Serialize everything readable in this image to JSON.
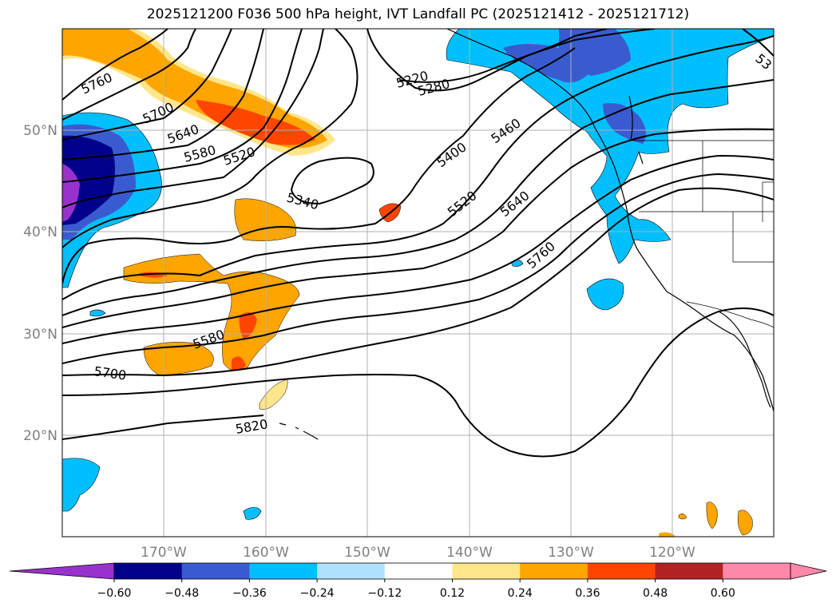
{
  "title": "2025121200 F036 500 hPa height, IVT Landfall PC (2025121412 - 2025121712)",
  "lat_labels": [
    "50°N",
    "40°N",
    "30°N",
    "20°N"
  ],
  "lon_labels": [
    "170°W",
    "160°W",
    "150°W",
    "140°W",
    "130°W",
    "120°W"
  ],
  "contours": [
    "5760",
    "5700",
    "5640",
    "5580",
    "5520",
    "5340",
    "5220",
    "5280",
    "5400",
    "5460",
    "5520",
    "5640",
    "5760",
    "5580",
    "5700",
    "5820",
    "53"
  ],
  "colorbar": {
    "ticks": [
      "−0.60",
      "−0.48",
      "−0.36",
      "−0.24",
      "−0.12",
      "0.12",
      "0.24",
      "0.36",
      "0.48",
      "0.60"
    ],
    "colors": [
      "#9932cc",
      "#00008b",
      "#3a5bcf",
      "#00bfff",
      "#b0e2ff",
      "#ffffff",
      "#ffe68a",
      "#ffa500",
      "#ff4500",
      "#b22222",
      "#ff88aa",
      "#ff88aa"
    ]
  },
  "fill_colors": {
    "dark_purple": "#9932cc",
    "navy": "#00008b",
    "blue": "#3a5bcf",
    "sky": "#00bfff",
    "light_yellow": "#ffe68a",
    "orange": "#ffa500",
    "red_orange": "#ff4500"
  }
}
